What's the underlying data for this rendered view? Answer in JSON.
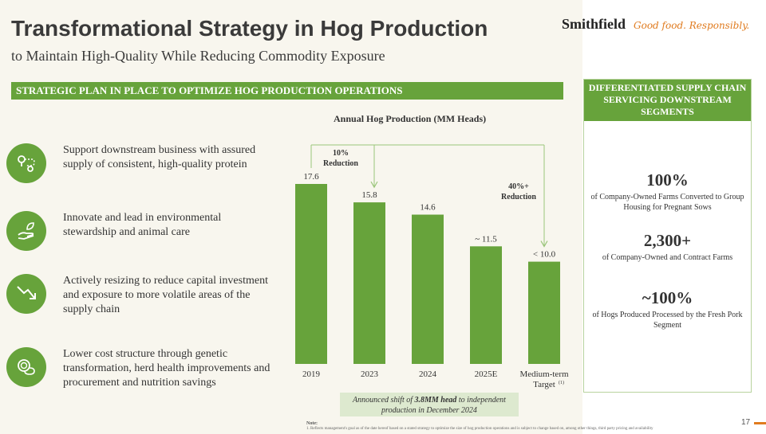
{
  "header": {
    "title": "Transformational Strategy in Hog Production",
    "subtitle": "to Maintain High-Quality While Reducing Commodity Exposure",
    "brand_name": "Smithfield",
    "brand_tagline": "Good food. Responsibly."
  },
  "banner": "STRATEGIC PLAN IN PLACE TO OPTIMIZE HOG PRODUCTION OPERATIONS",
  "strategies": [
    {
      "icon": "supply-route-icon",
      "text": "Support downstream business with assured supply of consistent, high-quality protein"
    },
    {
      "icon": "hand-leaf-icon",
      "text": "Innovate and lead in environmental stewardship and animal care"
    },
    {
      "icon": "down-trend-icon",
      "text": "Actively resizing to reduce capital investment and exposure to more volatile areas of the supply chain"
    },
    {
      "icon": "coins-icon",
      "text": "Lower cost structure through genetic transformation, herd health improvements and procurement and nutrition savings"
    }
  ],
  "right_panel": {
    "header": "DIFFERENTIATED SUPPLY CHAIN SERVICING DOWNSTREAM SEGMENTS",
    "stats": [
      {
        "value": "100%",
        "desc": "of Company-Owned Farms Converted to Group Housing for Pregnant Sows"
      },
      {
        "value": "2,300+",
        "desc": "of Company-Owned and Contract Farms"
      },
      {
        "value": "~100%",
        "desc": "of Hogs Produced Processed by the Fresh Pork Segment"
      }
    ]
  },
  "chart_data": {
    "type": "bar",
    "title": "Annual Hog Production (MM Heads)",
    "categories": [
      "2019",
      "2023",
      "2024",
      "2025E",
      "Medium-term Target"
    ],
    "category_footnote": "(1)",
    "values": [
      17.6,
      15.8,
      14.6,
      11.5,
      10.0
    ],
    "value_labels": [
      "17.6",
      "15.8",
      "14.6",
      "~ 11.5",
      "< 10.0"
    ],
    "color": "#67a33b",
    "annotations": [
      {
        "text": "10% Reduction",
        "from_category": "2019",
        "to_category": "2023"
      },
      {
        "text": "40%+ Reduction",
        "from_category": "2019",
        "to_category": "Medium-term Target"
      }
    ]
  },
  "callout": {
    "prefix": "Announced shift of ",
    "emphasis": "3.8MM head",
    "suffix": " to independent production in December 2024"
  },
  "footnote": {
    "label": "Note:",
    "text": "1. Reflects management's goal as of the date hereof based on a stated strategy to optimize the size of hog production operations and is subject to change based on, among other things, third party pricing and availability"
  },
  "page_number": "17",
  "colors": {
    "accent_green": "#67a33b",
    "accent_orange": "#e07b1f"
  }
}
